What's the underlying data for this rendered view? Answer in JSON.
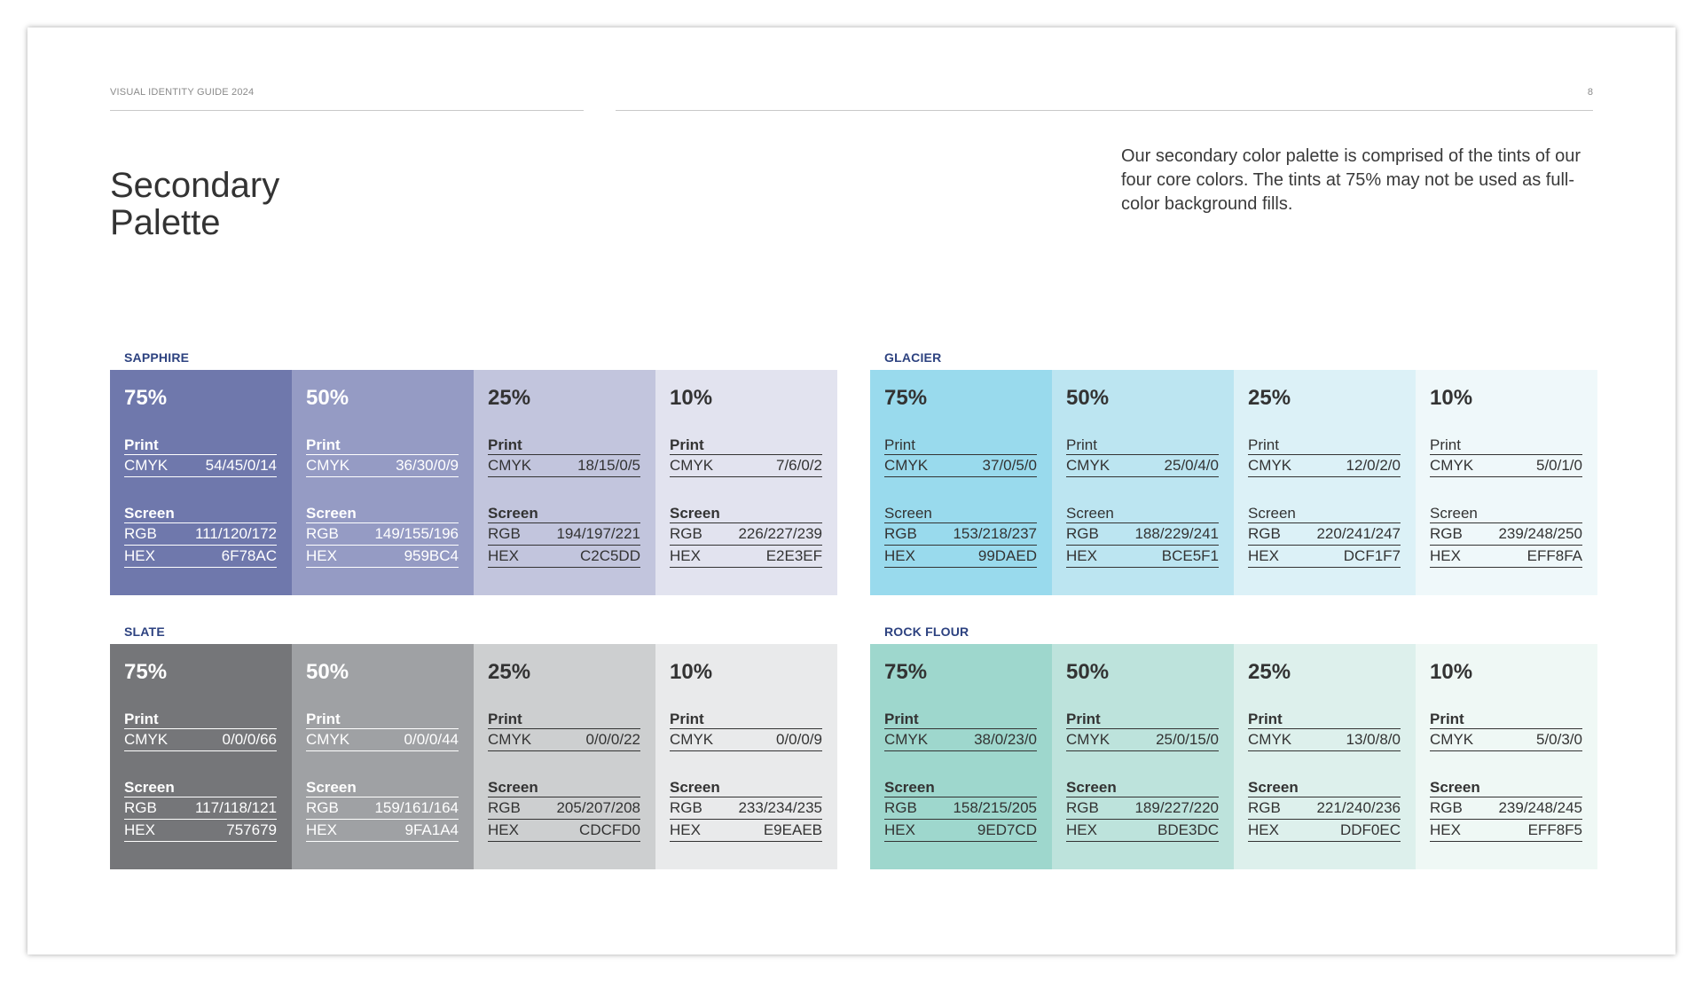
{
  "header": {
    "left": "VISUAL IDENTITY GUIDE 2024",
    "page_number": "8"
  },
  "title": "Secondary\nPalette",
  "intro": "Our secondary color palette is comprised of the tints of our four core colors. The tints at 75% may not be used as full-color background fills.",
  "labels": {
    "print": "Print",
    "screen": "Screen",
    "cmyk": "CMYK",
    "rgb": "RGB",
    "hex": "HEX"
  },
  "groups": [
    {
      "name": "SAPPHIRE",
      "swatches": [
        {
          "pct": "75%",
          "cmyk": "54/45/0/14",
          "rgb": "111/120/172",
          "hex": "6F78AC",
          "color": "#6F78AC",
          "text_color": "#ffffff"
        },
        {
          "pct": "50%",
          "cmyk": "36/30/0/9",
          "rgb": "149/155/196",
          "hex": "959BC4",
          "color": "#959BC4",
          "text_color": "#ffffff"
        },
        {
          "pct": "25%",
          "cmyk": "18/15/0/5",
          "rgb": "194/197/221",
          "hex": "C2C5DD",
          "color": "#C2C5DD",
          "text_color": "#333333"
        },
        {
          "pct": "10%",
          "cmyk": "7/6/0/2",
          "rgb": "226/227/239",
          "hex": "E2E3EF",
          "color": "#E2E3EF",
          "text_color": "#333333"
        }
      ]
    },
    {
      "name": "GLACIER",
      "swatches": [
        {
          "pct": "75%",
          "cmyk": "37/0/5/0",
          "rgb": "153/218/237",
          "hex": "99DAED",
          "color": "#99DAED",
          "text_color": "#333333"
        },
        {
          "pct": "50%",
          "cmyk": "25/0/4/0",
          "rgb": "188/229/241",
          "hex": "BCE5F1",
          "color": "#BCE5F1",
          "text_color": "#333333"
        },
        {
          "pct": "25%",
          "cmyk": "12/0/2/0",
          "rgb": "220/241/247",
          "hex": "DCF1F7",
          "color": "#DCF1F7",
          "text_color": "#333333"
        },
        {
          "pct": "10%",
          "cmyk": "5/0/1/0",
          "rgb": "239/248/250",
          "hex": "EFF8FA",
          "color": "#EFF8FA",
          "text_color": "#333333"
        }
      ]
    },
    {
      "name": "SLATE",
      "swatches": [
        {
          "pct": "75%",
          "cmyk": "0/0/0/66",
          "rgb": "117/118/121",
          "hex": "757679",
          "color": "#757679",
          "text_color": "#ffffff"
        },
        {
          "pct": "50%",
          "cmyk": "0/0/0/44",
          "rgb": "159/161/164",
          "hex": "9FA1A4",
          "color": "#9FA1A4",
          "text_color": "#ffffff"
        },
        {
          "pct": "25%",
          "cmyk": "0/0/0/22",
          "rgb": "205/207/208",
          "hex": "CDCFD0",
          "color": "#CDCFD0",
          "text_color": "#333333"
        },
        {
          "pct": "10%",
          "cmyk": "0/0/0/9",
          "rgb": "233/234/235",
          "hex": "E9EAEB",
          "color": "#E9EAEB",
          "text_color": "#333333"
        }
      ]
    },
    {
      "name": "ROCK FLOUR",
      "swatches": [
        {
          "pct": "75%",
          "cmyk": "38/0/23/0",
          "rgb": "158/215/205",
          "hex": "9ED7CD",
          "color": "#9ED7CD",
          "text_color": "#333333"
        },
        {
          "pct": "50%",
          "cmyk": "25/0/15/0",
          "rgb": "189/227/220",
          "hex": "BDE3DC",
          "color": "#BDE3DC",
          "text_color": "#333333"
        },
        {
          "pct": "25%",
          "cmyk": "13/0/8/0",
          "rgb": "221/240/236",
          "hex": "DDF0EC",
          "color": "#DDF0EC",
          "text_color": "#333333"
        },
        {
          "pct": "10%",
          "cmyk": "5/0/3/0",
          "rgb": "239/248/245",
          "hex": "EFF8F5",
          "color": "#EFF8F5",
          "text_color": "#333333"
        }
      ]
    }
  ]
}
